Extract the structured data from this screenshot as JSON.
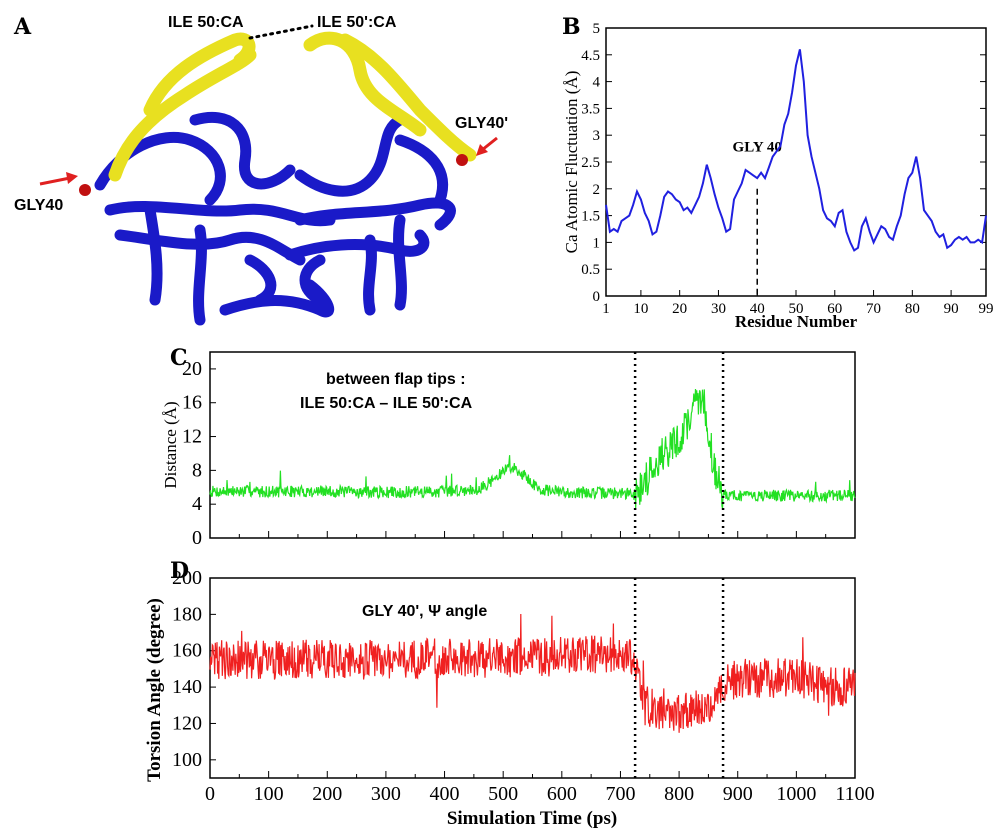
{
  "panels": {
    "a_letter": "A",
    "b_letter": "B",
    "c_letter": "C",
    "d_letter": "D"
  },
  "structure": {
    "labels": [
      "ILE 50:CA",
      "ILE 50':CA",
      "GLY40",
      "GLY40'"
    ],
    "colors": {
      "flap": "#e8e020",
      "core": "#1a1ac8",
      "tip": "#c01010",
      "arrow": "#e02020"
    }
  },
  "chart_data": [
    {
      "panel": "B",
      "type": "line",
      "xlabel": "Residue Number",
      "ylabel": "Ca Atomic Fluctuation (Å)",
      "xlim": [
        1,
        99
      ],
      "ylim": [
        0,
        5
      ],
      "xticks": [
        1,
        10,
        20,
        30,
        40,
        50,
        60,
        70,
        80,
        90,
        99
      ],
      "yticks": [
        0,
        0.5,
        1,
        1.5,
        2,
        2.5,
        3,
        3.5,
        4,
        4.5,
        5
      ],
      "ytick_labels": [
        "0",
        "0.5",
        "1",
        "1.5",
        "2",
        "2.5",
        "3",
        "3.5",
        "4",
        "4.5",
        "5"
      ],
      "color": "#2020e0",
      "annotation": {
        "text": "GLY 40",
        "x": 40
      },
      "series": [
        {
          "x": [
            1,
            2,
            3,
            4,
            5,
            6,
            7,
            8,
            9,
            10,
            11,
            12,
            13,
            14,
            15,
            16,
            17,
            18,
            19,
            20,
            21,
            22,
            23,
            24,
            25,
            26,
            27,
            28,
            29,
            30,
            31,
            32,
            33,
            34,
            35,
            36,
            37,
            38,
            39,
            40,
            41,
            42,
            43,
            44,
            45,
            46,
            47,
            48,
            49,
            50,
            51,
            52,
            53,
            54,
            55,
            56,
            57,
            58,
            59,
            60,
            61,
            62,
            63,
            64,
            65,
            66,
            67,
            68,
            69,
            70,
            71,
            72,
            73,
            74,
            75,
            76,
            77,
            78,
            79,
            80,
            81,
            82,
            83,
            84,
            85,
            86,
            87,
            88,
            89,
            90,
            91,
            92,
            93,
            94,
            95,
            96,
            97,
            98,
            99
          ],
          "values": [
            1.7,
            1.2,
            1.25,
            1.2,
            1.4,
            1.45,
            1.5,
            1.7,
            1.95,
            1.8,
            1.55,
            1.4,
            1.15,
            1.2,
            1.5,
            1.85,
            1.95,
            1.9,
            1.8,
            1.75,
            1.6,
            1.65,
            1.55,
            1.7,
            1.85,
            2.1,
            2.45,
            2.2,
            1.9,
            1.65,
            1.45,
            1.2,
            1.25,
            1.8,
            1.95,
            2.1,
            2.35,
            2.3,
            2.25,
            2.2,
            2.3,
            2.2,
            2.4,
            2.6,
            2.7,
            2.8,
            3.2,
            3.4,
            3.8,
            4.3,
            4.6,
            4.0,
            3.0,
            2.6,
            2.3,
            2.0,
            1.6,
            1.45,
            1.4,
            1.3,
            1.55,
            1.6,
            1.2,
            1.0,
            0.85,
            0.9,
            1.3,
            1.45,
            1.2,
            1.0,
            1.15,
            1.3,
            1.25,
            1.1,
            1.05,
            1.3,
            1.5,
            1.9,
            2.2,
            2.3,
            2.6,
            2.2,
            1.6,
            1.5,
            1.4,
            1.2,
            1.1,
            1.15,
            0.9,
            0.95,
            1.05,
            1.1,
            1.05,
            1.1,
            1.0,
            1.0,
            1.05,
            1.0,
            1.5
          ]
        }
      ]
    },
    {
      "panel": "C",
      "type": "line",
      "xlabel": "",
      "ylabel": "Distance (Å)",
      "xlim": [
        0,
        1100
      ],
      "ylim": [
        0,
        22
      ],
      "yticks": [
        0,
        4,
        8,
        12,
        16,
        20
      ],
      "color": "#22e022",
      "annotation_lines": [
        "between flap tips :",
        "ILE 50:CA – ILE 50':CA"
      ],
      "vlines": [
        725,
        875
      ],
      "series": [
        {
          "name": "",
          "keypoints_x": [
            0,
            100,
            200,
            300,
            400,
            460,
            490,
            510,
            530,
            560,
            600,
            700,
            725,
            740,
            760,
            780,
            800,
            820,
            835,
            845,
            860,
            875,
            900,
            1000,
            1100
          ],
          "keypoints_y": [
            5.5,
            5.5,
            5.5,
            5.4,
            5.5,
            5.8,
            7.2,
            8.5,
            7.8,
            5.8,
            5.4,
            5.3,
            5.2,
            6.5,
            9.0,
            10.5,
            11.5,
            14.5,
            17.0,
            15.0,
            8.0,
            5.2,
            5.0,
            5.0,
            5.0
          ]
        }
      ]
    },
    {
      "panel": "D",
      "type": "line",
      "xlabel": "Simulation Time (ps)",
      "ylabel": "Torsion Angle (degree)",
      "xlim": [
        0,
        1100
      ],
      "ylim": [
        90,
        200
      ],
      "xticks": [
        0,
        100,
        200,
        300,
        400,
        500,
        600,
        700,
        800,
        900,
        1000,
        1100
      ],
      "yticks": [
        100,
        120,
        140,
        160,
        180,
        200
      ],
      "color": "#f02020",
      "annotation": {
        "text": "GLY 40', Ψ angle"
      },
      "vlines": [
        725,
        875
      ],
      "series": [
        {
          "name": "",
          "keypoints_x": [
            0,
            100,
            200,
            300,
            400,
            500,
            600,
            700,
            725,
            740,
            800,
            850,
            875,
            900,
            1000,
            1050,
            1100
          ],
          "keypoints_y": [
            155,
            155,
            155,
            155,
            156,
            156,
            157,
            158,
            155,
            130,
            125,
            130,
            140,
            145,
            145,
            140,
            140
          ]
        }
      ]
    }
  ]
}
